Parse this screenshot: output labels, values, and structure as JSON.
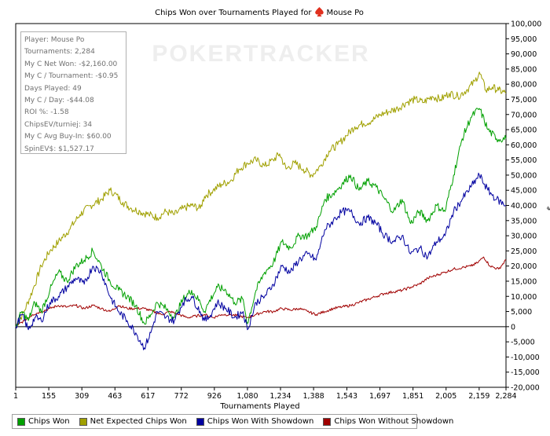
{
  "chart_data": {
    "type": "line",
    "title": "Chips Won over Tournaments Played for",
    "player_name": "Mouse Po",
    "watermark": "POKERTRACKER",
    "xlabel": "Tournaments Played",
    "ylabel": "$",
    "xlim": [
      1,
      2284
    ],
    "ylim": [
      -20000,
      100000
    ],
    "x_ticks": [
      "1",
      "155",
      "309",
      "463",
      "617",
      "772",
      "926",
      "1,080",
      "1,234",
      "1,388",
      "1,543",
      "1,697",
      "1,851",
      "2,005",
      "2,159",
      "2,284"
    ],
    "x_tick_values": [
      1,
      155,
      309,
      463,
      617,
      772,
      926,
      1080,
      1234,
      1388,
      1543,
      1697,
      1851,
      2005,
      2159,
      2284
    ],
    "y_ticks": [
      "-20,000",
      "-15,000",
      "-10,000",
      "-5,000",
      "0",
      "5,000",
      "10,000",
      "15,000",
      "20,000",
      "25,000",
      "30,000",
      "35,000",
      "40,000",
      "45,000",
      "50,000",
      "55,000",
      "60,000",
      "65,000",
      "70,000",
      "75,000",
      "80,000",
      "85,000",
      "90,000",
      "95,000",
      "100,000"
    ],
    "y_tick_values": [
      -20000,
      -15000,
      -10000,
      -5000,
      0,
      5000,
      10000,
      15000,
      20000,
      25000,
      30000,
      35000,
      40000,
      45000,
      50000,
      55000,
      60000,
      65000,
      70000,
      75000,
      80000,
      85000,
      90000,
      95000,
      100000
    ],
    "series": [
      {
        "name": "Net Expected Chips Won",
        "color": "#a0a000",
        "x": [
          1,
          40,
          80,
          120,
          160,
          200,
          250,
          300,
          350,
          400,
          440,
          460,
          500,
          540,
          580,
          620,
          660,
          700,
          740,
          780,
          820,
          860,
          880,
          920,
          960,
          1000,
          1040,
          1080,
          1120,
          1160,
          1200,
          1230,
          1260,
          1300,
          1340,
          1380,
          1420,
          1460,
          1500,
          1540,
          1580,
          1620,
          1660,
          1700,
          1740,
          1780,
          1820,
          1860,
          1900,
          1940,
          1980,
          2020,
          2060,
          2100,
          2140,
          2160,
          2190,
          2220,
          2250,
          2284
        ],
        "y": [
          0,
          5000,
          12000,
          20000,
          25000,
          28000,
          32000,
          37000,
          40000,
          42000,
          45000,
          44000,
          41000,
          39000,
          38000,
          37000,
          36000,
          38000,
          37000,
          39000,
          40000,
          39000,
          43000,
          45000,
          47000,
          48000,
          52000,
          54000,
          55000,
          53000,
          55000,
          57000,
          52000,
          54000,
          52000,
          50000,
          53000,
          58000,
          60000,
          63000,
          66000,
          67000,
          68000,
          70000,
          71000,
          72000,
          74000,
          75000,
          74000,
          76000,
          75000,
          77000,
          76000,
          78000,
          81000,
          84000,
          78000,
          79000,
          78000,
          77000
        ]
      },
      {
        "name": "Chips Won",
        "color": "#00a000",
        "x": [
          1,
          30,
          60,
          90,
          120,
          160,
          200,
          240,
          280,
          320,
          360,
          400,
          440,
          480,
          520,
          560,
          600,
          630,
          660,
          700,
          740,
          780,
          820,
          860,
          880,
          900,
          940,
          980,
          1020,
          1060,
          1080,
          1120,
          1160,
          1200,
          1240,
          1280,
          1320,
          1360,
          1400,
          1420,
          1440,
          1480,
          1520,
          1560,
          1600,
          1640,
          1680,
          1720,
          1760,
          1800,
          1840,
          1880,
          1920,
          1960,
          2000,
          2040,
          2080,
          2120,
          2160,
          2200,
          2240,
          2284
        ],
        "y": [
          0,
          5000,
          2000,
          8000,
          5000,
          12000,
          18000,
          15000,
          20000,
          22000,
          25000,
          20000,
          15000,
          12000,
          10000,
          7000,
          1000,
          4000,
          8000,
          6000,
          3000,
          9000,
          12000,
          8000,
          5000,
          8000,
          13000,
          12000,
          8000,
          9000,
          1000,
          12000,
          18000,
          21000,
          28000,
          26000,
          30000,
          30000,
          33000,
          37000,
          42000,
          44000,
          47000,
          50000,
          45000,
          48000,
          46000,
          42000,
          38000,
          42000,
          34000,
          38000,
          35000,
          40000,
          38000,
          50000,
          62000,
          69000,
          72000,
          65000,
          62000,
          62000
        ]
      },
      {
        "name": "Chips Won With Showdown",
        "color": "#0000a0",
        "x": [
          1,
          30,
          60,
          90,
          120,
          160,
          200,
          240,
          280,
          320,
          360,
          400,
          440,
          480,
          520,
          560,
          600,
          630,
          660,
          700,
          740,
          780,
          820,
          860,
          880,
          900,
          940,
          980,
          1020,
          1060,
          1080,
          1120,
          1160,
          1200,
          1240,
          1280,
          1320,
          1360,
          1400,
          1420,
          1440,
          1480,
          1520,
          1560,
          1600,
          1640,
          1680,
          1720,
          1760,
          1800,
          1840,
          1880,
          1920,
          1960,
          2000,
          2040,
          2080,
          2120,
          2160,
          2200,
          2240,
          2284
        ],
        "y": [
          0,
          4000,
          -1000,
          3000,
          2000,
          8000,
          10000,
          13000,
          16000,
          14000,
          20000,
          18000,
          10000,
          5000,
          2000,
          -2000,
          -7000,
          -2000,
          5000,
          3000,
          2000,
          8000,
          10000,
          5000,
          2000,
          3000,
          8000,
          6000,
          3000,
          5000,
          -1000,
          8000,
          10000,
          14000,
          20000,
          18000,
          22000,
          24000,
          22000,
          27000,
          32000,
          35000,
          38000,
          38000,
          34000,
          36000,
          34000,
          30000,
          28000,
          30000,
          24000,
          26000,
          23000,
          28000,
          30000,
          38000,
          42000,
          46000,
          50000,
          45000,
          42000,
          40000
        ]
      },
      {
        "name": "Chips Won Without Showdown",
        "color": "#a00000",
        "x": [
          1,
          40,
          80,
          120,
          160,
          200,
          240,
          280,
          320,
          360,
          400,
          440,
          480,
          520,
          560,
          600,
          640,
          680,
          720,
          760,
          800,
          840,
          880,
          920,
          960,
          1000,
          1040,
          1080,
          1120,
          1160,
          1200,
          1240,
          1280,
          1320,
          1360,
          1400,
          1440,
          1480,
          1520,
          1560,
          1600,
          1640,
          1680,
          1720,
          1760,
          1800,
          1840,
          1880,
          1920,
          1960,
          2000,
          2040,
          2080,
          2120,
          2150,
          2180,
          2210,
          2250,
          2284
        ],
        "y": [
          0,
          2000,
          4000,
          5000,
          6000,
          7000,
          6500,
          7000,
          6000,
          7000,
          6000,
          5000,
          7000,
          6000,
          6000,
          6000,
          5000,
          4000,
          5000,
          4000,
          3000,
          3500,
          4000,
          3000,
          4000,
          4000,
          3500,
          3000,
          4000,
          5000,
          5000,
          6000,
          5500,
          6000,
          5000,
          4000,
          5000,
          6000,
          6500,
          7000,
          8000,
          9000,
          10000,
          11000,
          11500,
          12000,
          13000,
          14000,
          16000,
          17000,
          18000,
          19000,
          19500,
          20000,
          21000,
          23000,
          20000,
          19000,
          22000
        ]
      }
    ],
    "legend_order": [
      "Chips Won",
      "Net Expected Chips Won",
      "Chips Won With Showdown",
      "Chips Won Without Showdown"
    ],
    "grid": false,
    "legend_position": "bottom-left"
  },
  "info": {
    "lines": [
      "Player: Mouse Po",
      "Tournaments: 2,284",
      "My C Net Won: -$2,160.00",
      "My C / Tournament: -$0.95",
      "Days Played: 49",
      "My C / Day: -$44.08",
      "ROI %: -1.58",
      "ChipsEV/turniej: 34",
      "My C Avg Buy-In: $60.00",
      "SpinEV$: $1,527.17"
    ]
  },
  "legend": {
    "items": [
      {
        "label": "Chips Won",
        "color": "#00a000"
      },
      {
        "label": "Net Expected Chips Won",
        "color": "#a0a000"
      },
      {
        "label": "Chips Won With Showdown",
        "color": "#0000a0"
      },
      {
        "label": "Chips Won Without Showdown",
        "color": "#a00000"
      }
    ]
  }
}
